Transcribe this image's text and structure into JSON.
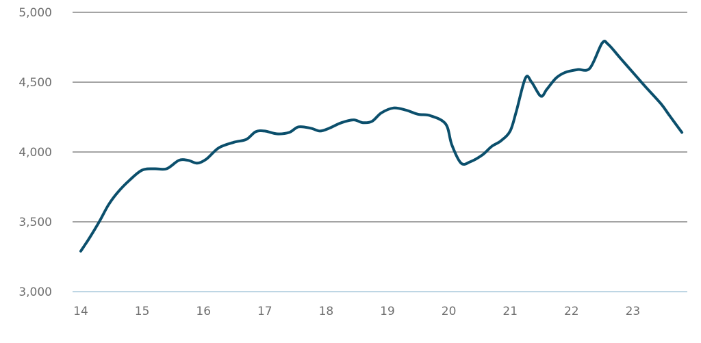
{
  "chart_data": {
    "type": "line",
    "title": "",
    "xlabel": "",
    "ylabel": "",
    "xlim": [
      14,
      23.8
    ],
    "ylim": [
      3000,
      5000
    ],
    "x_ticks": [
      14,
      15,
      16,
      17,
      18,
      19,
      20,
      21,
      22,
      23
    ],
    "x_tick_labels": [
      "14",
      "15",
      "16",
      "17",
      "18",
      "19",
      "20",
      "21",
      "22",
      "23"
    ],
    "y_ticks": [
      3000,
      3500,
      4000,
      4500,
      5000
    ],
    "y_tick_labels": [
      "3,000",
      "3,500",
      "4,000",
      "4,500",
      "5,000"
    ],
    "grid": true,
    "legend": "none",
    "colors": {
      "line": "#0b4f6c",
      "grid": "#6d6d6d",
      "baseline": "#a9c9dc",
      "tick_text": "#6f6f6f"
    },
    "series": [
      {
        "x": [
          14.0,
          14.15,
          14.3,
          14.45,
          14.6,
          14.8,
          15.0,
          15.2,
          15.4,
          15.6,
          15.75,
          15.9,
          16.05,
          16.25,
          16.5,
          16.7,
          16.85,
          17.0,
          17.2,
          17.4,
          17.55,
          17.75,
          17.9,
          18.05,
          18.25,
          18.45,
          18.6,
          18.75,
          18.9,
          19.1,
          19.3,
          19.5,
          19.7,
          19.95,
          20.05,
          20.2,
          20.35,
          20.55,
          20.7,
          20.85,
          21.0,
          21.1,
          21.25,
          21.35,
          21.5,
          21.6,
          21.75,
          21.9,
          22.1,
          22.3,
          22.5,
          22.6,
          22.8,
          23.0,
          23.2,
          23.45,
          23.6,
          23.8
        ],
        "y": [
          3290,
          3390,
          3500,
          3620,
          3710,
          3800,
          3870,
          3880,
          3880,
          3940,
          3940,
          3920,
          3950,
          4030,
          4070,
          4090,
          4145,
          4150,
          4130,
          4140,
          4180,
          4170,
          4150,
          4170,
          4210,
          4230,
          4210,
          4220,
          4280,
          4315,
          4300,
          4270,
          4260,
          4200,
          4050,
          3920,
          3930,
          3980,
          4040,
          4080,
          4150,
          4290,
          4530,
          4500,
          4400,
          4450,
          4530,
          4570,
          4590,
          4600,
          4780,
          4770,
          4670,
          4570,
          4470,
          4350,
          4260,
          4140
        ]
      }
    ]
  }
}
